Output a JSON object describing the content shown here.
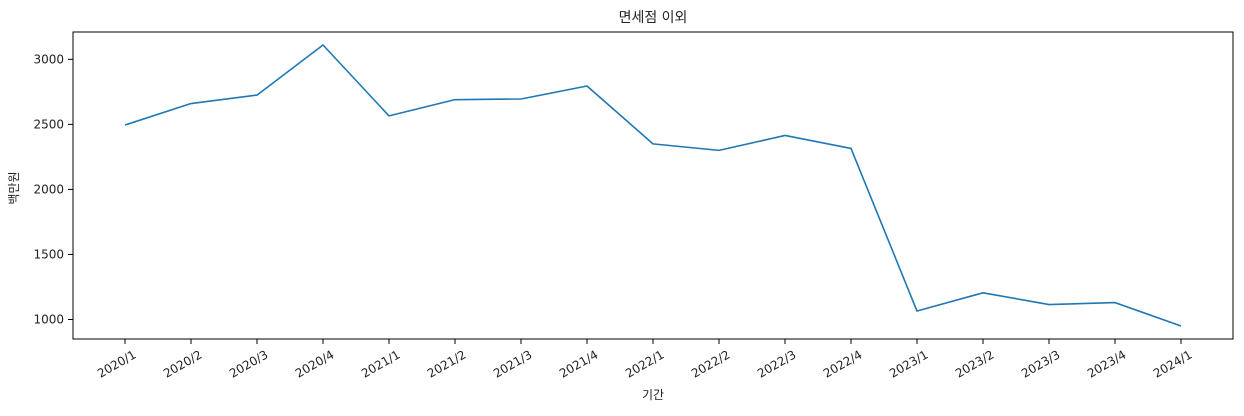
{
  "chart_data": {
    "type": "line",
    "title": "면세점 이외",
    "xlabel": "기간",
    "ylabel": "백만원",
    "categories": [
      "2020/1",
      "2020/2",
      "2020/3",
      "2020/4",
      "2021/1",
      "2021/2",
      "2021/3",
      "2021/4",
      "2022/1",
      "2022/2",
      "2022/3",
      "2022/4",
      "2023/1",
      "2023/2",
      "2023/3",
      "2023/4",
      "2024/1"
    ],
    "series": [
      {
        "values": [
          2495,
          2660,
          2725,
          3110,
          2565,
          2690,
          2695,
          2795,
          2350,
          2300,
          2415,
          2315,
          1065,
          1205,
          1115,
          1130,
          950
        ],
        "color": "#1f77b4"
      }
    ],
    "ylim": [
      850,
      3210
    ],
    "yticks": [
      1000,
      1500,
      2000,
      2500,
      3000
    ],
    "grid": false,
    "legend": "none",
    "x_tick_rotation": 30
  }
}
